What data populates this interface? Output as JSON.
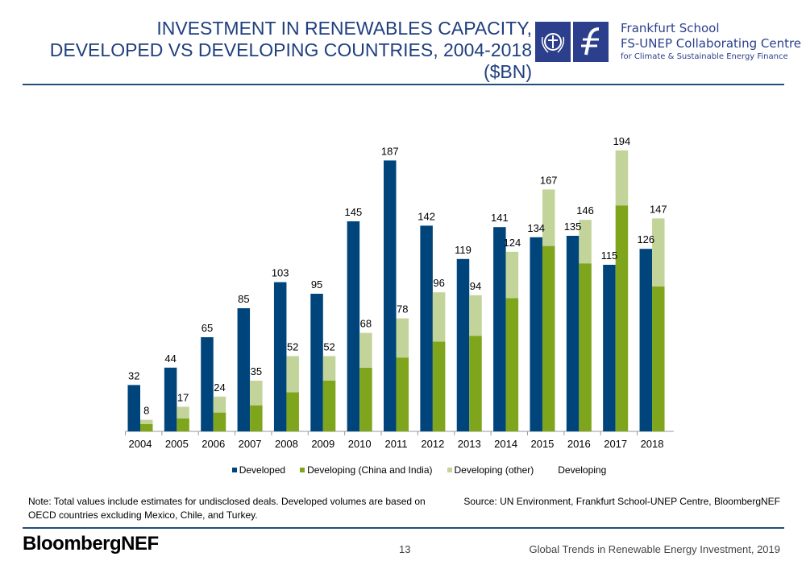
{
  "header": {
    "title_lines": [
      "INVESTMENT IN RENEWABLES CAPACITY,",
      "DEVELOPED VS DEVELOPING COUNTRIES, 2004-2018",
      "($BN)"
    ],
    "partner_logo": {
      "line1": "Frankfurt School",
      "line2": "FS-UNEP Collaborating Centre",
      "line3": "for Climate & Sustainable Energy Finance"
    }
  },
  "colors": {
    "developed": "#00447c",
    "china_india": "#7fa51c",
    "other": "#c3d49a",
    "title": "#1f3f7f",
    "rule": "#1f4e79"
  },
  "chart_data": {
    "type": "bar",
    "stacked_groups": true,
    "categories": [
      "2004",
      "2005",
      "2006",
      "2007",
      "2008",
      "2009",
      "2010",
      "2011",
      "2012",
      "2013",
      "2014",
      "2015",
      "2016",
      "2017",
      "2018"
    ],
    "series": [
      {
        "name": "Developed",
        "values": [
          32,
          44,
          65,
          85,
          103,
          95,
          145,
          187,
          142,
          119,
          141,
          134,
          135,
          115,
          126
        ]
      },
      {
        "name": "Developing (China and India)",
        "values": [
          5,
          9,
          13,
          18,
          27,
          35,
          44,
          51,
          62,
          66,
          92,
          128,
          116,
          156,
          100
        ],
        "stack": "Developing"
      },
      {
        "name": "Developing (other)",
        "values": [
          3,
          8,
          11,
          17,
          25,
          17,
          24,
          27,
          34,
          28,
          32,
          39,
          30,
          38,
          47
        ],
        "stack": "Developing"
      }
    ],
    "developing_totals": [
      8,
      17,
      24,
      35,
      52,
      52,
      68,
      78,
      96,
      94,
      124,
      167,
      146,
      194,
      147
    ],
    "legend": [
      "Developed",
      "Developing (China and India)",
      "Developing (other)",
      "Developing"
    ],
    "legend_position": "bottom",
    "ylim": [
      0,
      200
    ],
    "grid": false,
    "y_axis_visible": false
  },
  "footer": {
    "note": "Note: Total values include estimates for undisclosed deals. Developed volumes are based on OECD countries excluding Mexico, Chile, and Turkey.",
    "source": "Source: UN Environment, Frankfurt School-UNEP Centre, BloombergNEF",
    "brand": "BloombergNEF",
    "page": "13",
    "report": "Global Trends in Renewable Energy Investment, 2019"
  }
}
